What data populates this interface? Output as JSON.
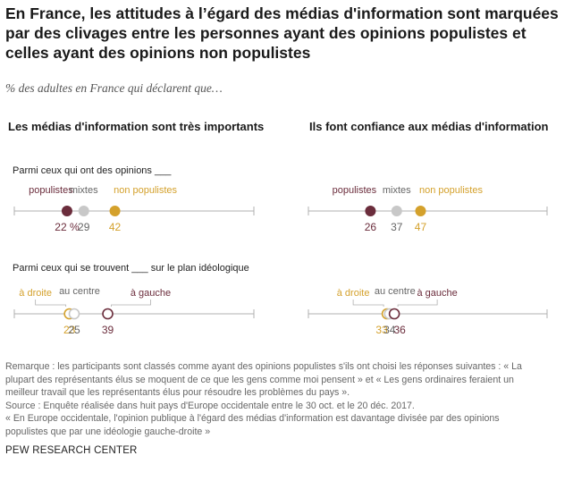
{
  "title": "En France, les attitudes à l’égard des médias d'information sont marquées par des clivages entre les personnes ayant des opinions populistes et celles ayant des opinions non populistes",
  "subtitle": "% des adultes en France qui déclarent que…",
  "colors": {
    "populist": "#6b2d3c",
    "mixed": "#c8c8c8",
    "nonpopulist": "#d4a12c",
    "right": "#d4a12c",
    "center": "#c8c8c8",
    "left": "#6b2d3c",
    "axis": "#b0b0b0",
    "text_gray": "#666666"
  },
  "chart_data": {
    "type": "dot",
    "panels": [
      {
        "title": "Les médias d'information sont très importants"
      },
      {
        "title": "Ils font confiance aux médias d'information"
      }
    ],
    "rows": [
      {
        "label": "Parmi ceux qui ont des opinions ___",
        "groups": [
          {
            "key": "populist",
            "name": "populistes"
          },
          {
            "key": "mixed",
            "name": "mixtes"
          },
          {
            "key": "nonpopulist",
            "name": "non populistes"
          }
        ],
        "values": [
          [
            22,
            29,
            42
          ],
          [
            26,
            37,
            47
          ]
        ],
        "value_labels": [
          [
            "22 %",
            "29",
            "42"
          ],
          [
            "26",
            "37",
            "47"
          ]
        ]
      },
      {
        "label": "Parmi ceux qui se trouvent ___ sur le plan idéologique",
        "groups": [
          {
            "key": "right",
            "name": "à droite"
          },
          {
            "key": "center",
            "name": "au centre"
          },
          {
            "key": "left",
            "name": "à gauche"
          }
        ],
        "values": [
          [
            23,
            25,
            39
          ],
          [
            33,
            34,
            36
          ]
        ],
        "value_labels": [
          [
            "23",
            "25",
            "39"
          ],
          [
            "33",
            "34",
            "36"
          ]
        ]
      }
    ],
    "xlim": [
      0,
      100
    ]
  },
  "notes": [
    "Remarque : les participants sont classés comme ayant des opinions populistes s'ils ont choisi les réponses suivantes : « La",
    "plupart des représentants élus se moquent de ce que les gens comme moi pensent » et « Les gens ordinaires feraient un",
    "meilleur travail que les représentants élus pour résoudre les problèmes du pays ».",
    "Source : Enquête réalisée dans huit pays d'Europe occidentale entre le 30 oct. et le 20 déc. 2017.",
    "« En Europe occidentale, l'opinion publique à l'égard des médias d'information est davantage divisée par des opinions",
    "populistes que par une idéologie gauche-droite »"
  ],
  "brand": "PEW RESEARCH CENTER"
}
